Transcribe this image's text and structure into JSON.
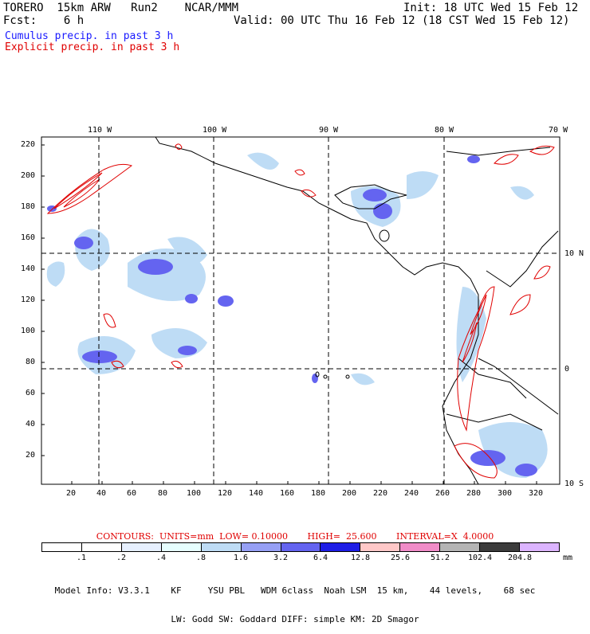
{
  "header": {
    "model": "TORERO  15km ARW   Run2    NCAR/MMM",
    "init": "Init: 18 UTC Wed 15 Feb 12",
    "fcst": "Fcst:    6 h",
    "valid": "Valid: 00 UTC Thu 16 Feb 12 (18 CST Wed 15 Feb 12)",
    "cumulus": "Cumulus precip. in past 3 h",
    "explicit": "Explicit precip. in past 3 h"
  },
  "map": {
    "lon_labels": [
      "110 W",
      "100 W",
      "90 W",
      "80 W",
      "70 W"
    ],
    "lat_labels": [
      "10 N",
      "0",
      "10 S"
    ],
    "x_ticks": [
      "20",
      "40",
      "60",
      "80",
      "100",
      "120",
      "140",
      "160",
      "180",
      "200",
      "220",
      "240",
      "260",
      "280",
      "300",
      "320"
    ],
    "y_ticks": [
      "220",
      "200",
      "180",
      "160",
      "140",
      "120",
      "100",
      "80",
      "60",
      "40",
      "20"
    ],
    "x_range": [
      0,
      335
    ],
    "y_range": [
      0,
      225
    ]
  },
  "contours": {
    "label": "CONTOURS:  UNITS=mm  LOW= 0.10000       HIGH=  25.600       INTERVAL=X  4.0000",
    "color": "#e00000"
  },
  "colorbar": {
    "labels": [
      ".1",
      ".2",
      ".4",
      ".8",
      "1.6",
      "3.2",
      "6.4",
      "12.8",
      "25.6",
      "51.2",
      "102.4",
      "204.8"
    ],
    "unit": "mm",
    "colors": [
      "#ffffff",
      "#ffffff",
      "#e6f0ff",
      "#e6ffff",
      "#bedcf5",
      "#96a0f5",
      "#6464f0",
      "#1e1ee6",
      "#ffc8c8",
      "#f08cc8",
      "#b4b4b4",
      "#3c3c3c",
      "#dcb4ff"
    ]
  },
  "footer": {
    "line1": "Model Info: V3.3.1    KF     YSU PBL   WDM 6class  Noah LSM  15 km,    44 levels,    68 sec",
    "line2": "LW: Godd SW: Goddard DIFF: simple KM: 2D Smagor"
  }
}
